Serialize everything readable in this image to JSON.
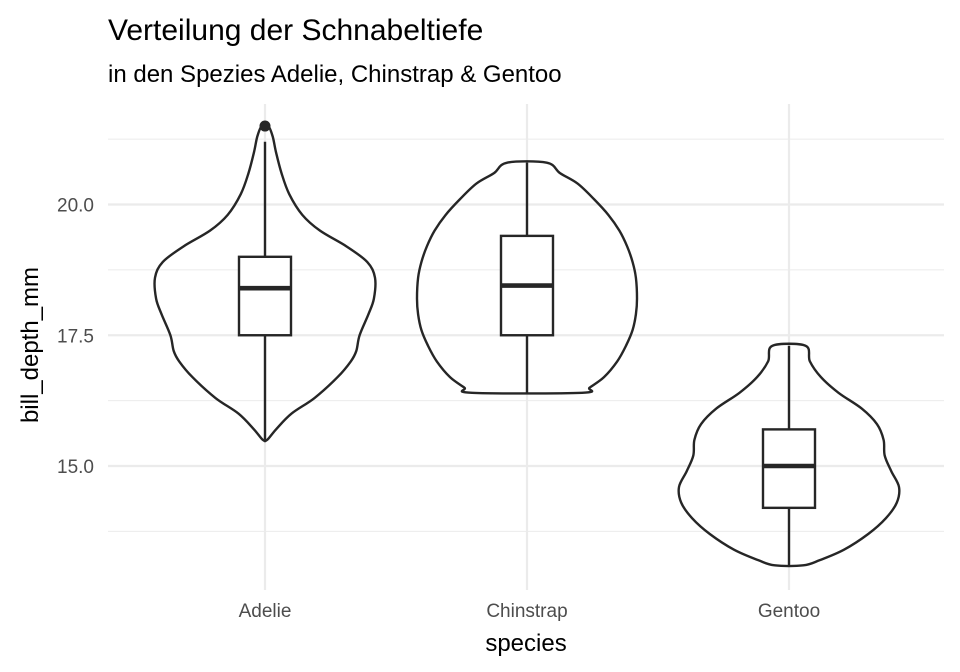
{
  "chart_data": {
    "type": "violin",
    "title": "Verteilung der Schnabeltiefe",
    "subtitle": "in den Spezies Adelie, Chinstrap & Gentoo",
    "xlabel": "species",
    "ylabel": "bill_depth_mm",
    "categories": [
      "Adelie",
      "Chinstrap",
      "Gentoo"
    ],
    "y_ticks": [
      15.0,
      17.5,
      20.0
    ],
    "y_tick_labels": [
      "15.0",
      "17.5",
      "20.0"
    ],
    "ylim": [
      12.4,
      21.8
    ],
    "grid": true,
    "legend": "none",
    "colors": {
      "line": "#262626",
      "grid": "#ebebeb",
      "tick_text": "#4d4d4d"
    },
    "groups": [
      {
        "name": "Adelie",
        "violin": {
          "y": [
            15.5,
            15.7,
            16.0,
            16.3,
            16.7,
            17.0,
            17.2,
            17.5,
            17.9,
            18.2,
            18.6,
            18.9,
            19.2,
            19.5,
            19.8,
            20.2,
            20.6,
            21.0,
            21.3,
            21.5
          ],
          "w": [
            0.02,
            0.1,
            0.24,
            0.45,
            0.66,
            0.78,
            0.83,
            0.86,
            0.94,
            0.99,
            1.0,
            0.93,
            0.74,
            0.5,
            0.34,
            0.22,
            0.15,
            0.1,
            0.07,
            0.03
          ]
        },
        "whisker_low": 15.5,
        "q1": 17.5,
        "median": 18.4,
        "q3": 19.0,
        "whisker_high": 21.2,
        "outliers": [
          21.5
        ]
      },
      {
        "name": "Chinstrap",
        "violin": {
          "y": [
            16.4,
            16.5,
            16.7,
            17.0,
            17.3,
            17.6,
            17.9,
            18.2,
            18.6,
            18.9,
            19.2,
            19.5,
            19.8,
            20.1,
            20.4,
            20.6,
            20.8
          ],
          "w": [
            0.5,
            0.57,
            0.7,
            0.82,
            0.9,
            0.96,
            0.99,
            1.0,
            0.99,
            0.96,
            0.91,
            0.84,
            0.74,
            0.61,
            0.46,
            0.3,
            0.18
          ]
        },
        "whisker_low": 16.4,
        "q1": 17.5,
        "median": 18.45,
        "q3": 19.4,
        "whisker_high": 20.8,
        "outliers": []
      },
      {
        "name": "Gentoo",
        "violin": {
          "y": [
            13.1,
            13.2,
            13.4,
            13.7,
            14.0,
            14.3,
            14.6,
            14.9,
            15.2,
            15.5,
            15.8,
            16.1,
            16.4,
            16.7,
            17.0,
            17.3
          ],
          "w": [
            0.13,
            0.28,
            0.5,
            0.72,
            0.88,
            0.98,
            1.0,
            0.93,
            0.87,
            0.86,
            0.8,
            0.66,
            0.45,
            0.29,
            0.19,
            0.15
          ]
        },
        "whisker_low": 13.1,
        "q1": 14.2,
        "median": 15.0,
        "q3": 15.7,
        "whisker_high": 17.3,
        "outliers": []
      }
    ]
  }
}
